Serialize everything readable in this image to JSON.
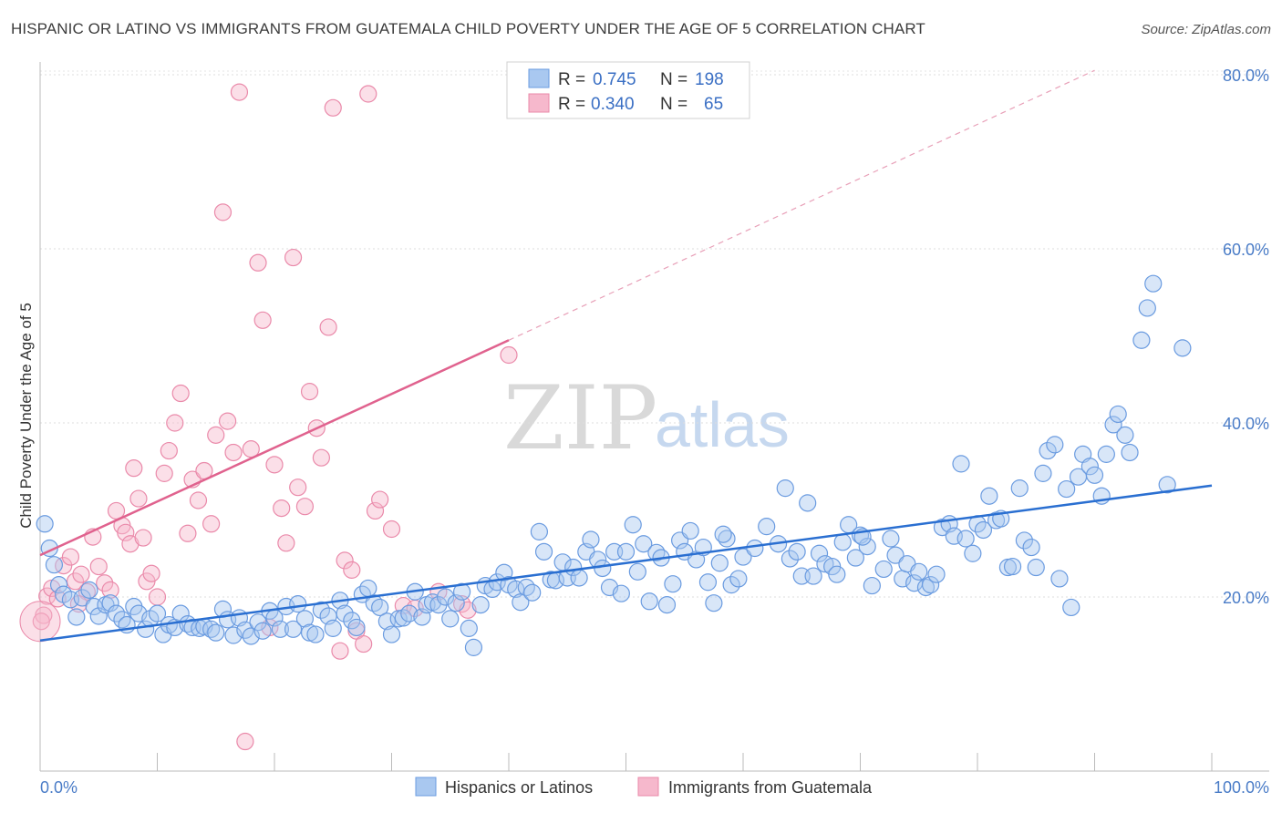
{
  "header": {
    "title": "HISPANIC OR LATINO VS IMMIGRANTS FROM GUATEMALA CHILD POVERTY UNDER THE AGE OF 5 CORRELATION CHART",
    "source": "Source: ZipAtlas.com"
  },
  "watermark": {
    "zip": "ZIP",
    "atlas": "atlas"
  },
  "colors": {
    "blue_fill": "#a9c8f0",
    "blue_stroke": "#6a9be0",
    "blue_line": "#2a6fd1",
    "pink_fill": "#f6b8cc",
    "pink_stroke": "#ea8aaa",
    "pink_line": "#e0628e",
    "tick_label": "#4a7cc7",
    "grid": "#dddddd"
  },
  "legend": {
    "rows": [
      {
        "r_label": "R =",
        "r_value": "0.745",
        "n_label": "N =",
        "n_value": "198"
      },
      {
        "r_label": "R =",
        "r_value": "0.340",
        "n_label": "N =",
        "n_value": "65"
      }
    ]
  },
  "bottom_legend": [
    "Hispanics or Latinos",
    "Immigrants from Guatemala"
  ],
  "chart_data": {
    "type": "scatter",
    "title": "HISPANIC OR LATINO VS IMMIGRANTS FROM GUATEMALA CHILD POVERTY UNDER THE AGE OF 5 CORRELATION CHART",
    "xlabel": "",
    "ylabel": "Child Poverty Under the Age of 5",
    "xlim": [
      0,
      100
    ],
    "ylim": [
      0,
      82
    ],
    "x_tick_labels": [
      "0.0%",
      "100.0%"
    ],
    "y_ticks": [
      20,
      40,
      60,
      80
    ],
    "y_tick_labels": [
      "20.0%",
      "40.0%",
      "60.0%",
      "80.0%"
    ],
    "grid": true,
    "legend_position": "top-center",
    "series": [
      {
        "name": "Hispanics or Latinos",
        "color": "#a9c8f0",
        "r": 0.745,
        "n": 198,
        "trend": {
          "x": [
            0,
            100
          ],
          "y": [
            15.0,
            32.8
          ]
        },
        "points": [
          [
            0.4,
            28.4
          ],
          [
            0.8,
            25.6
          ],
          [
            1.2,
            23.7
          ],
          [
            1.6,
            21.4
          ],
          [
            2,
            20.3
          ],
          [
            2.6,
            19.7
          ],
          [
            3.1,
            17.7
          ],
          [
            3.6,
            19.9
          ],
          [
            4.2,
            20.8
          ],
          [
            4.6,
            18.9
          ],
          [
            5,
            17.8
          ],
          [
            5.6,
            19.1
          ],
          [
            6,
            19.3
          ],
          [
            6.5,
            18.1
          ],
          [
            7,
            17.4
          ],
          [
            7.4,
            16.8
          ],
          [
            8,
            18.9
          ],
          [
            8.4,
            18.1
          ],
          [
            9,
            16.3
          ],
          [
            9.4,
            17.5
          ],
          [
            10,
            18.1
          ],
          [
            10.5,
            15.7
          ],
          [
            11,
            16.8
          ],
          [
            11.5,
            16.5
          ],
          [
            12,
            18.1
          ],
          [
            12.6,
            16.9
          ],
          [
            13,
            16.5
          ],
          [
            13.6,
            16.4
          ],
          [
            14,
            16.6
          ],
          [
            14.6,
            16.3
          ],
          [
            15,
            15.9
          ],
          [
            15.6,
            18.6
          ],
          [
            16,
            17.4
          ],
          [
            16.5,
            15.6
          ],
          [
            17,
            17.6
          ],
          [
            17.5,
            16.2
          ],
          [
            18,
            15.5
          ],
          [
            18.6,
            17.1
          ],
          [
            19,
            16.1
          ],
          [
            19.6,
            18.4
          ],
          [
            20,
            17.6
          ],
          [
            20.5,
            16.3
          ],
          [
            21,
            18.9
          ],
          [
            21.6,
            16.3
          ],
          [
            22,
            19.2
          ],
          [
            22.6,
            17.5
          ],
          [
            23,
            15.9
          ],
          [
            23.5,
            15.7
          ],
          [
            24,
            18.5
          ],
          [
            24.6,
            17.8
          ],
          [
            25,
            16.4
          ],
          [
            25.6,
            19.6
          ],
          [
            26,
            18.1
          ],
          [
            26.6,
            17.3
          ],
          [
            27,
            16.5
          ],
          [
            27.5,
            20.3
          ],
          [
            28,
            21.0
          ],
          [
            28.5,
            19.3
          ],
          [
            29,
            18.8
          ],
          [
            29.6,
            17.2
          ],
          [
            30,
            15.7
          ],
          [
            30.6,
            17.5
          ],
          [
            31,
            17.6
          ],
          [
            31.5,
            18.1
          ],
          [
            32,
            20.6
          ],
          [
            32.6,
            17.7
          ],
          [
            33,
            19.1
          ],
          [
            33.5,
            19.4
          ],
          [
            34,
            19.1
          ],
          [
            34.6,
            20.0
          ],
          [
            35,
            17.5
          ],
          [
            35.5,
            19.3
          ],
          [
            36,
            20.6
          ],
          [
            36.6,
            16.4
          ],
          [
            37,
            14.2
          ],
          [
            37.6,
            19.1
          ],
          [
            38,
            21.3
          ],
          [
            38.6,
            20.9
          ],
          [
            39,
            21.7
          ],
          [
            39.6,
            22.8
          ],
          [
            40,
            21.4
          ],
          [
            40.6,
            20.9
          ],
          [
            41,
            19.4
          ],
          [
            41.5,
            21.1
          ],
          [
            42,
            20.5
          ],
          [
            42.6,
            27.5
          ],
          [
            43,
            25.2
          ],
          [
            43.6,
            22.0
          ],
          [
            44,
            21.9
          ],
          [
            44.6,
            24.0
          ],
          [
            45,
            22.2
          ],
          [
            45.5,
            23.4
          ],
          [
            46,
            22.2
          ],
          [
            46.6,
            25.2
          ],
          [
            47,
            26.6
          ],
          [
            47.6,
            24.3
          ],
          [
            48,
            23.3
          ],
          [
            48.6,
            21.1
          ],
          [
            49,
            25.2
          ],
          [
            49.6,
            20.4
          ],
          [
            50,
            25.2
          ],
          [
            50.6,
            28.3
          ],
          [
            51,
            22.9
          ],
          [
            51.5,
            26.1
          ],
          [
            52,
            19.5
          ],
          [
            52.6,
            25.1
          ],
          [
            53,
            24.5
          ],
          [
            53.5,
            19.1
          ],
          [
            54,
            21.5
          ],
          [
            54.6,
            26.5
          ],
          [
            55,
            25.2
          ],
          [
            55.5,
            27.6
          ],
          [
            56,
            24.3
          ],
          [
            56.6,
            25.7
          ],
          [
            57,
            21.7
          ],
          [
            57.5,
            19.3
          ],
          [
            58,
            23.9
          ],
          [
            58.6,
            26.7
          ],
          [
            59,
            21.4
          ],
          [
            59.6,
            22.1
          ],
          [
            60,
            24.6
          ],
          [
            61,
            25.6
          ],
          [
            62,
            28.1
          ],
          [
            63,
            26.1
          ],
          [
            63.6,
            32.5
          ],
          [
            64,
            24.4
          ],
          [
            64.6,
            25.2
          ],
          [
            65,
            22.4
          ],
          [
            65.5,
            30.8
          ],
          [
            66,
            22.4
          ],
          [
            66.5,
            25.0
          ],
          [
            67,
            23.8
          ],
          [
            67.6,
            23.5
          ],
          [
            68,
            22.6
          ],
          [
            68.5,
            26.3
          ],
          [
            69,
            28.3
          ],
          [
            69.6,
            24.5
          ],
          [
            70,
            27.1
          ],
          [
            70.6,
            25.8
          ],
          [
            71,
            21.3
          ],
          [
            72,
            23.2
          ],
          [
            72.6,
            26.7
          ],
          [
            73,
            24.8
          ],
          [
            73.6,
            22.1
          ],
          [
            74,
            23.8
          ],
          [
            74.6,
            21.6
          ],
          [
            75,
            22.9
          ],
          [
            75.6,
            21.1
          ],
          [
            76,
            21.4
          ],
          [
            76.5,
            22.6
          ],
          [
            77,
            28.0
          ],
          [
            77.6,
            28.4
          ],
          [
            78,
            27.0
          ],
          [
            78.6,
            35.3
          ],
          [
            79,
            26.7
          ],
          [
            79.6,
            25.0
          ],
          [
            80,
            28.4
          ],
          [
            80.5,
            27.7
          ],
          [
            81,
            31.6
          ],
          [
            81.6,
            28.8
          ],
          [
            82,
            29.0
          ],
          [
            82.6,
            23.4
          ],
          [
            83,
            23.5
          ],
          [
            83.6,
            32.5
          ],
          [
            84,
            26.5
          ],
          [
            84.6,
            25.7
          ],
          [
            85,
            23.4
          ],
          [
            85.6,
            34.2
          ],
          [
            86,
            36.8
          ],
          [
            86.6,
            37.5
          ],
          [
            87,
            22.1
          ],
          [
            87.6,
            32.4
          ],
          [
            88,
            18.8
          ],
          [
            88.6,
            33.8
          ],
          [
            89,
            36.4
          ],
          [
            89.6,
            35.0
          ],
          [
            90,
            34.0
          ],
          [
            90.6,
            31.6
          ],
          [
            91,
            36.4
          ],
          [
            91.6,
            39.8
          ],
          [
            92,
            41.0
          ],
          [
            92.6,
            38.6
          ],
          [
            93,
            36.6
          ],
          [
            94,
            49.5
          ],
          [
            94.5,
            53.2
          ],
          [
            95,
            56.0
          ],
          [
            96.2,
            32.9
          ],
          [
            97.5,
            48.6
          ],
          [
            70.2,
            26.9
          ],
          [
            58.3,
            27.2
          ]
        ]
      },
      {
        "name": "Immigrants from Guatemala",
        "color": "#f6b8cc",
        "r": 0.34,
        "n": 65,
        "trend": {
          "x": [
            0,
            40
          ],
          "y": [
            24.8,
            49.5
          ],
          "dashed_to": {
            "x": 90,
            "y": 80.5
          }
        },
        "points": [
          [
            0.3,
            17.9
          ],
          [
            0.6,
            20.1
          ],
          [
            1,
            21.0
          ],
          [
            1.5,
            19.8
          ],
          [
            2,
            23.6
          ],
          [
            2.6,
            24.6
          ],
          [
            3,
            21.8
          ],
          [
            3.5,
            22.6
          ],
          [
            4,
            20.6
          ],
          [
            4.5,
            26.9
          ],
          [
            5,
            23.5
          ],
          [
            5.5,
            21.6
          ],
          [
            6,
            20.8
          ],
          [
            6.5,
            29.9
          ],
          [
            7,
            28.2
          ],
          [
            7.3,
            27.4
          ],
          [
            7.7,
            26.1
          ],
          [
            8,
            34.8
          ],
          [
            8.4,
            31.3
          ],
          [
            8.8,
            26.8
          ],
          [
            9.1,
            21.8
          ],
          [
            9.5,
            22.7
          ],
          [
            10,
            20.0
          ],
          [
            10.6,
            34.2
          ],
          [
            11,
            36.8
          ],
          [
            11.5,
            40.0
          ],
          [
            12,
            43.4
          ],
          [
            12.6,
            27.3
          ],
          [
            13,
            33.5
          ],
          [
            13.5,
            31.1
          ],
          [
            14,
            34.5
          ],
          [
            14.6,
            28.4
          ],
          [
            15,
            38.6
          ],
          [
            15.6,
            64.2
          ],
          [
            16,
            40.2
          ],
          [
            16.5,
            36.6
          ],
          [
            17,
            78.0
          ],
          [
            17.5,
            3.4
          ],
          [
            18,
            37.0
          ],
          [
            18.6,
            58.4
          ],
          [
            19,
            51.8
          ],
          [
            19.6,
            16.5
          ],
          [
            20,
            35.2
          ],
          [
            20.6,
            30.2
          ],
          [
            21,
            26.2
          ],
          [
            21.6,
            59.0
          ],
          [
            22,
            32.6
          ],
          [
            22.6,
            30.4
          ],
          [
            23,
            43.6
          ],
          [
            23.6,
            39.4
          ],
          [
            24,
            36.0
          ],
          [
            24.6,
            51.0
          ],
          [
            25,
            76.2
          ],
          [
            25.6,
            13.8
          ],
          [
            26,
            24.2
          ],
          [
            26.6,
            23.1
          ],
          [
            27,
            16.1
          ],
          [
            27.6,
            14.6
          ],
          [
            28,
            77.8
          ],
          [
            28.6,
            29.9
          ],
          [
            29,
            31.2
          ],
          [
            30,
            27.8
          ],
          [
            31,
            19.0
          ],
          [
            32,
            18.7
          ],
          [
            34,
            20.6
          ],
          [
            36,
            19.2
          ],
          [
            40,
            47.8
          ],
          [
            36.5,
            18.5
          ],
          [
            3.3,
            19.2
          ],
          [
            0.1,
            17.2
          ]
        ]
      }
    ]
  }
}
